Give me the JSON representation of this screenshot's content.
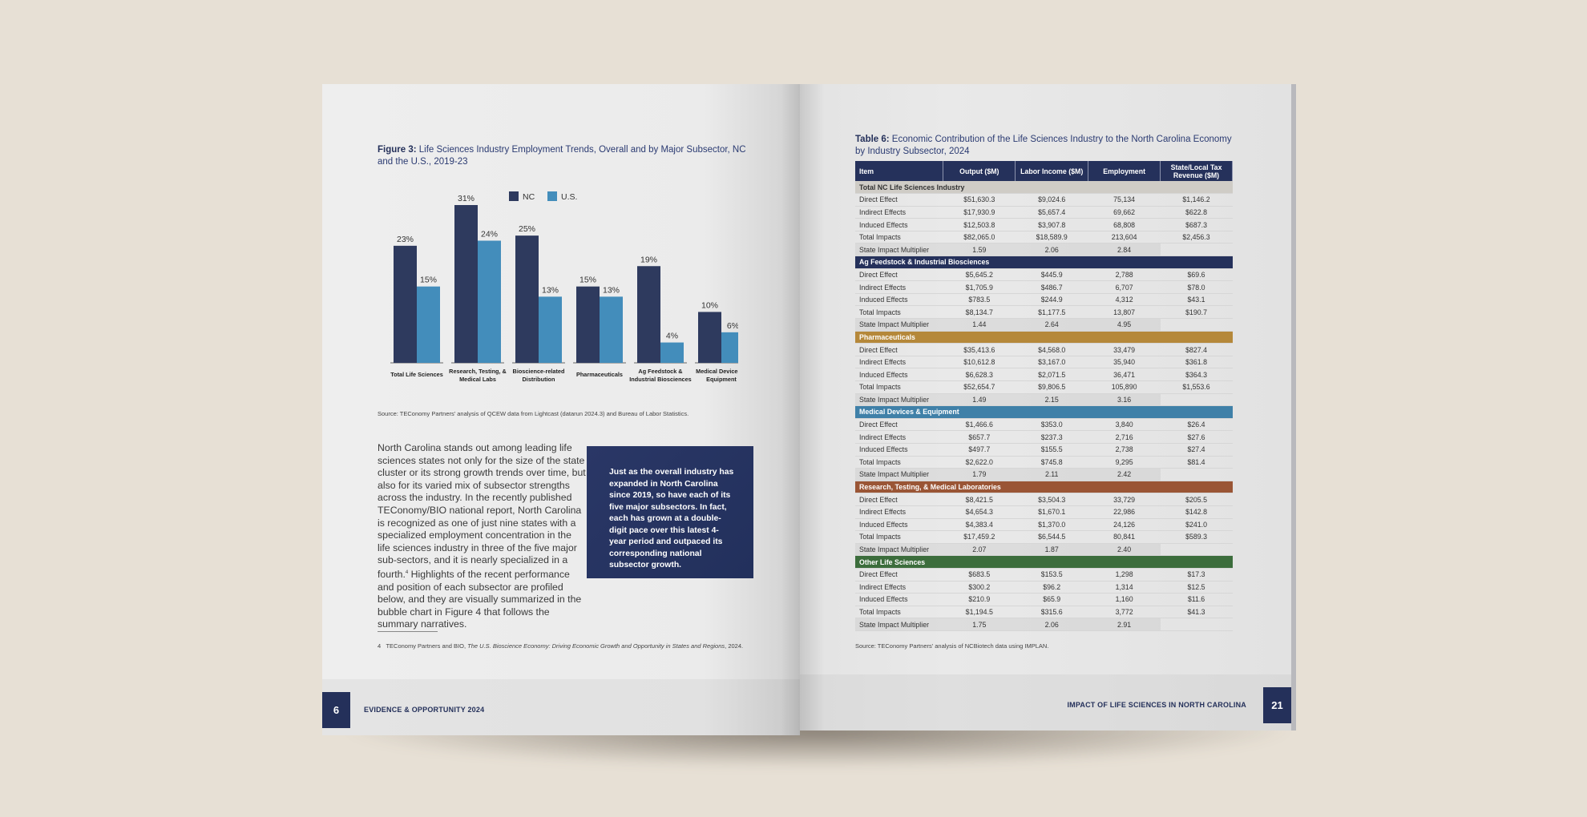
{
  "left_page": {
    "figure_title_bold": "Figure 3:",
    "figure_title": " Life Sciences Industry Employment Trends, Overall and by Major Subsector, NC and the U.S., 2019-23",
    "source": "Source: TEConomy Partners' analysis of QCEW data from Lightcast (datarun 2024.3) and Bureau of Labor Statistics.",
    "body": "North Carolina stands out among leading life sciences states not only for the size of the state cluster or its strong growth trends over time, but also for its varied mix of subsector strengths across the industry. In the recently published TEConomy/BIO national report, North Carolina is recognized as one of just nine states with a specialized employment concentration in the life sciences industry in three of the five major sub-sectors, and it is nearly specialized in a fourth.",
    "body_sup": "4",
    "body_cont": " Highlights of the recent performance and position of each subsector are profiled below, and they are visually summarized in the bubble chart in Figure 4 that follows the summary narratives.",
    "callout": "Just as the overall industry has expanded in North Carolina since 2019, so have each of its five major subsectors. In fact, each has grown at a double-digit pace over this latest 4-year period and outpaced its corresponding national subsector growth.",
    "footnote_num": "4",
    "footnote_pre": "TEConomy Partners and BIO, ",
    "footnote_italic": "The U.S. Bioscience Economy: Driving Economic Growth and Opportunity in States and Regions",
    "footnote_post": ", 2024.",
    "page_number": "6",
    "footer_title": "EVIDENCE & OPPORTUNITY 2024"
  },
  "chart_data": {
    "type": "bar",
    "title": "Figure 3: Life Sciences Industry Employment Trends, Overall and by Major Subsector, NC and the U.S., 2019-23",
    "categories": [
      [
        "Total Life Sciences"
      ],
      [
        "Research, Testing, &",
        "Medical Labs"
      ],
      [
        "Bioscience-related",
        "Distribution"
      ],
      [
        "Pharmaceuticals"
      ],
      [
        "Ag Feedstock &",
        "Industrial Biosciences"
      ],
      [
        "Medical Devices &",
        "Equipment"
      ]
    ],
    "series": [
      {
        "name": "NC",
        "color": "#2e3a5e",
        "values": [
          23,
          31,
          25,
          15,
          19,
          10
        ]
      },
      {
        "name": "U.S.",
        "color": "#438dbb",
        "values": [
          15,
          24,
          13,
          13,
          4,
          6
        ]
      }
    ],
    "unit": "%",
    "ylim": [
      0,
      31
    ],
    "legend": "top-center",
    "grid": false
  },
  "right_page": {
    "table_title_bold": "Table 6:",
    "table_title": " Economic Contribution of the Life Sciences Industry to the North Carolina Economy by Industry Subsector, 2024",
    "headers": [
      "Item",
      "Output ($M)",
      "Labor Income ($M)",
      "Employment",
      "State/Local Tax Revenue ($M)"
    ],
    "sections": [
      {
        "name": "Total NC Life Sciences Industry",
        "color": "#cfccc6",
        "text_color": "#333",
        "rows": [
          [
            "Direct Effect",
            "$51,630.3",
            "$9,024.6",
            "75,134",
            "$1,146.2"
          ],
          [
            "Indirect Effects",
            "$17,930.9",
            "$5,657.4",
            "69,662",
            "$622.8"
          ],
          [
            "Induced Effects",
            "$12,503.8",
            "$3,907.8",
            "68,808",
            "$687.3"
          ],
          [
            "Total Impacts",
            "$82,065.0",
            "$18,589.9",
            "213,604",
            "$2,456.3"
          ],
          [
            "State Impact Multiplier",
            "1.59",
            "2.06",
            "2.84",
            ""
          ]
        ]
      },
      {
        "name": "Ag Feedstock & Industrial Biosciences",
        "color": "#25315b",
        "text_color": "#fff",
        "rows": [
          [
            "Direct Effect",
            "$5,645.2",
            "$445.9",
            "2,788",
            "$69.6"
          ],
          [
            "Indirect Effects",
            "$1,705.9",
            "$486.7",
            "6,707",
            "$78.0"
          ],
          [
            "Induced Effects",
            "$783.5",
            "$244.9",
            "4,312",
            "$43.1"
          ],
          [
            "Total Impacts",
            "$8,134.7",
            "$1,177.5",
            "13,807",
            "$190.7"
          ],
          [
            "State Impact Multiplier",
            "1.44",
            "2.64",
            "4.95",
            ""
          ]
        ]
      },
      {
        "name": "Pharmaceuticals",
        "color": "#b5883a",
        "text_color": "#fff",
        "rows": [
          [
            "Direct Effect",
            "$35,413.6",
            "$4,568.0",
            "33,479",
            "$827.4"
          ],
          [
            "Indirect Effects",
            "$10,612.8",
            "$3,167.0",
            "35,940",
            "$361.8"
          ],
          [
            "Induced Effects",
            "$6,628.3",
            "$2,071.5",
            "36,471",
            "$364.3"
          ],
          [
            "Total Impacts",
            "$52,654.7",
            "$9,806.5",
            "105,890",
            "$1,553.6"
          ],
          [
            "State Impact Multiplier",
            "1.49",
            "2.15",
            "3.16",
            ""
          ]
        ]
      },
      {
        "name": "Medical Devices & Equipment",
        "color": "#3f80a8",
        "text_color": "#fff",
        "rows": [
          [
            "Direct Effect",
            "$1,466.6",
            "$353.0",
            "3,840",
            "$26.4"
          ],
          [
            "Indirect Effects",
            "$657.7",
            "$237.3",
            "2,716",
            "$27.6"
          ],
          [
            "Induced Effects",
            "$497.7",
            "$155.5",
            "2,738",
            "$27.4"
          ],
          [
            "Total Impacts",
            "$2,622.0",
            "$745.8",
            "9,295",
            "$81.4"
          ],
          [
            "State Impact Multiplier",
            "1.79",
            "2.11",
            "2.42",
            ""
          ]
        ]
      },
      {
        "name": "Research, Testing, & Medical Laboratories",
        "color": "#9a5535",
        "text_color": "#fff",
        "rows": [
          [
            "Direct Effect",
            "$8,421.5",
            "$3,504.3",
            "33,729",
            "$205.5"
          ],
          [
            "Indirect Effects",
            "$4,654.3",
            "$1,670.1",
            "22,986",
            "$142.8"
          ],
          [
            "Induced Effects",
            "$4,383.4",
            "$1,370.0",
            "24,126",
            "$241.0"
          ],
          [
            "Total Impacts",
            "$17,459.2",
            "$6,544.5",
            "80,841",
            "$589.3"
          ],
          [
            "State Impact Multiplier",
            "2.07",
            "1.87",
            "2.40",
            ""
          ]
        ]
      },
      {
        "name": "Other Life Sciences",
        "color": "#3c6d3c",
        "text_color": "#fff",
        "rows": [
          [
            "Direct Effect",
            "$683.5",
            "$153.5",
            "1,298",
            "$17.3"
          ],
          [
            "Indirect Effects",
            "$300.2",
            "$96.2",
            "1,314",
            "$12.5"
          ],
          [
            "Induced Effects",
            "$210.9",
            "$65.9",
            "1,160",
            "$11.6"
          ],
          [
            "Total Impacts",
            "$1,194.5",
            "$315.6",
            "3,772",
            "$41.3"
          ],
          [
            "State Impact Multiplier",
            "1.75",
            "2.06",
            "2.91",
            ""
          ]
        ]
      }
    ],
    "source": "Source: TEConomy Partners' analysis of NCBiotech data using IMPLAN.",
    "page_number": "21",
    "footer_title": "IMPACT OF LIFE SCIENCES IN NORTH CAROLINA"
  }
}
